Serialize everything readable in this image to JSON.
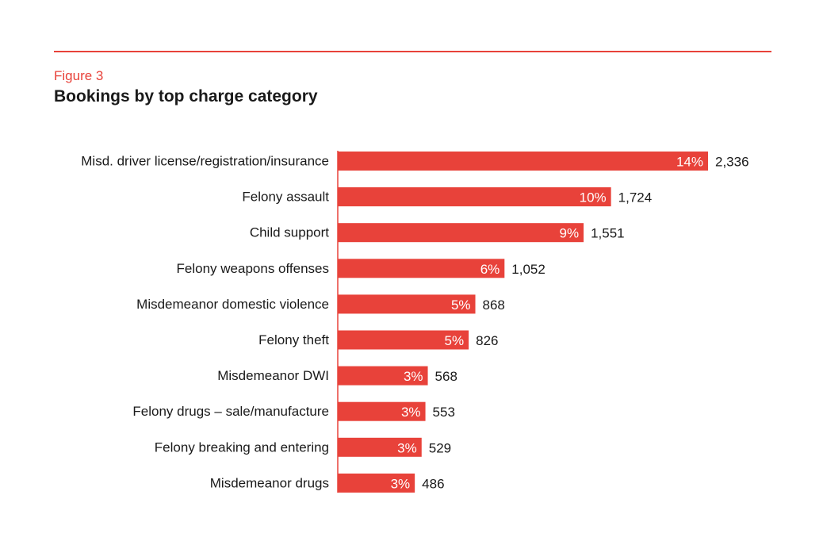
{
  "figure": {
    "label": "Figure 3",
    "title": "Bookings by top charge category"
  },
  "colors": {
    "accent": "#e8423a",
    "text": "#1a1a1a",
    "bar_text": "#ffffff"
  },
  "chart_data": {
    "type": "bar",
    "orientation": "horizontal",
    "title": "Bookings by top charge category",
    "xlabel": "",
    "ylabel": "",
    "xlim": [
      0,
      2336
    ],
    "grid": false,
    "categories": [
      "Misd. driver license/registration/insurance",
      "Felony assault",
      "Child support",
      "Felony weapons offenses",
      "Misdemeanor domestic violence",
      "Felony theft",
      "Misdemeanor DWI",
      "Felony drugs – sale/manufacture",
      "Felony breaking and entering",
      "Misdemeanor drugs"
    ],
    "values": [
      2336,
      1724,
      1551,
      1052,
      868,
      826,
      568,
      553,
      529,
      486
    ],
    "value_labels": [
      "2,336",
      "1,724",
      "1,551",
      "1,052",
      "868",
      "826",
      "568",
      "553",
      "529",
      "486"
    ],
    "percent_labels": [
      "14%",
      "10%",
      "9%",
      "6%",
      "5%",
      "5%",
      "3%",
      "3%",
      "3%",
      "3%"
    ]
  }
}
